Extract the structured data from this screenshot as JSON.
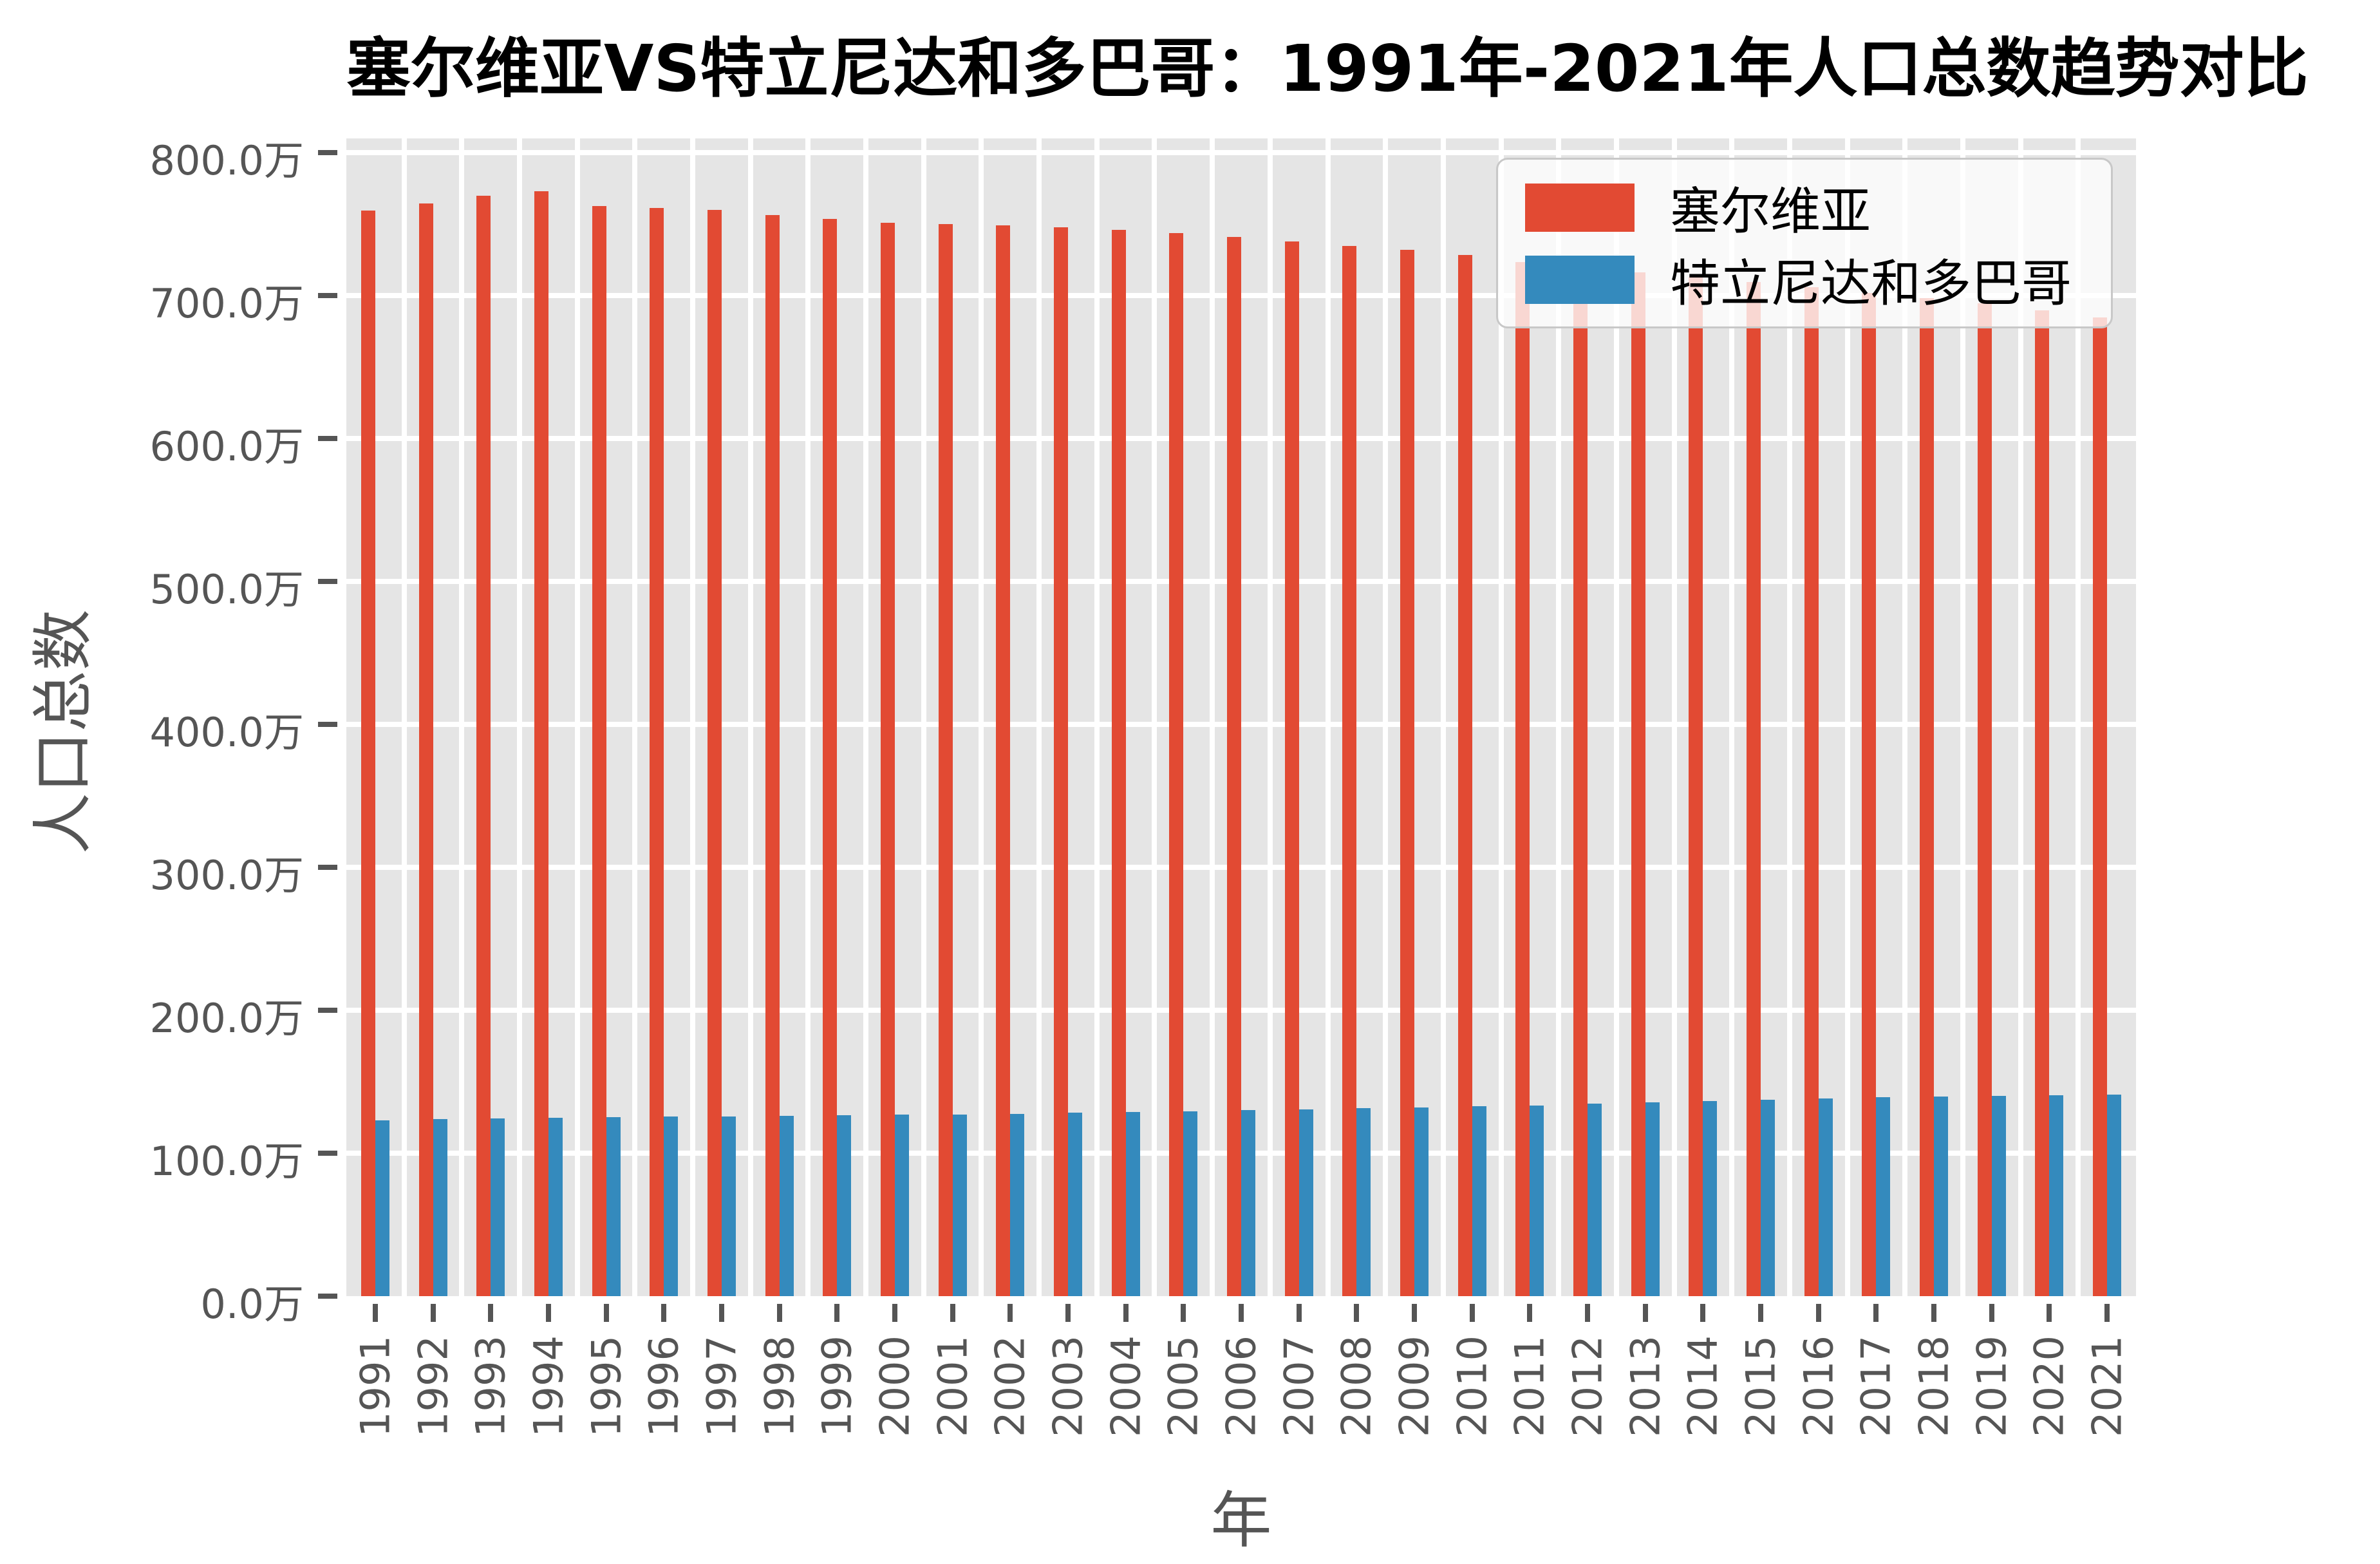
{
  "title": "塞尔维亚VS特立尼达和多巴哥：1991年-2021年人口总数趋势对比",
  "chart_data": {
    "type": "bar",
    "title": "塞尔维亚VS特立尼达和多巴哥：1991年-2021年人口总数趋势对比",
    "xlabel": "年",
    "ylabel": "人口总数",
    "unit": "万",
    "categories": [
      1991,
      1992,
      1993,
      1994,
      1995,
      1996,
      1997,
      1998,
      1999,
      2000,
      2001,
      2002,
      2003,
      2004,
      2005,
      2006,
      2007,
      2008,
      2009,
      2010,
      2011,
      2012,
      2013,
      2014,
      2015,
      2016,
      2017,
      2018,
      2019,
      2020,
      2021
    ],
    "series": [
      {
        "id": "serbia",
        "name": "塞尔维亚",
        "color": "#e24a33",
        "values": [
          759.6,
          764.6,
          769.9,
          773.2,
          762.5,
          761.2,
          759.8,
          756.5,
          753.5,
          751.2,
          750.0,
          749.2,
          747.8,
          745.9,
          743.6,
          740.9,
          738.0,
          734.7,
          731.9,
          728.5,
          723.4,
          719.9,
          716.4,
          713.1,
          709.5,
          705.8,
          702.1,
          698.3,
          694.5,
          689.9,
          684.8
        ]
      },
      {
        "id": "trinidad-tobago",
        "name": "特立尼达和多巴哥",
        "color": "#348abd",
        "values": [
          123.0,
          123.7,
          124.2,
          124.7,
          125.1,
          125.5,
          125.9,
          126.2,
          126.5,
          126.9,
          127.2,
          127.7,
          128.3,
          128.8,
          129.5,
          130.0,
          130.6,
          131.4,
          131.9,
          132.7,
          133.4,
          134.5,
          135.5,
          136.4,
          137.3,
          138.5,
          139.2,
          139.8,
          140.2,
          140.5,
          140.8
        ]
      }
    ],
    "ylim": [
      0,
      810
    ],
    "yticks": [
      0,
      100,
      200,
      300,
      400,
      500,
      600,
      700,
      800
    ],
    "ytick_labels": [
      "0.0万",
      "100.0万",
      "200.0万",
      "300.0万",
      "400.0万",
      "500.0万",
      "600.0万",
      "700.0万",
      "800.0万"
    ],
    "grid": true,
    "legend_position": "upper right",
    "plot_bg": "#e5e5e5",
    "grid_color": "#ffffff",
    "tick_color": "#555555"
  }
}
